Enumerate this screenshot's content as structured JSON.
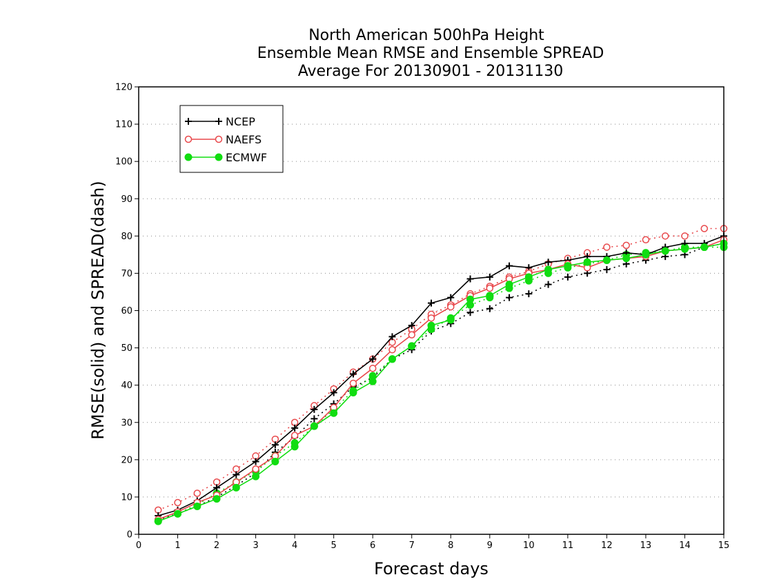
{
  "chart_data": {
    "type": "line",
    "title": [
      "North American 500hPa Height",
      "Ensemble Mean RMSE and Ensemble SPREAD",
      "Average For 20130901 - 20131130"
    ],
    "xlabel": "Forecast days",
    "ylabel": "RMSE(solid) and SPREAD(dash)",
    "xlim": [
      0,
      15
    ],
    "ylim": [
      0,
      120
    ],
    "xticks": [
      0,
      1,
      2,
      3,
      4,
      5,
      6,
      7,
      8,
      9,
      10,
      11,
      12,
      13,
      14,
      15
    ],
    "yticks": [
      0,
      10,
      20,
      30,
      40,
      50,
      60,
      70,
      80,
      90,
      100,
      110,
      120
    ],
    "grid": "horizontal dotted",
    "legend_position": "top-left",
    "x": [
      0.5,
      1,
      1.5,
      2,
      2.5,
      3,
      3.5,
      4,
      4.5,
      5,
      5.5,
      6,
      6.5,
      7,
      7.5,
      8,
      8.5,
      9,
      9.5,
      10,
      10.5,
      11,
      11.5,
      12,
      12.5,
      13,
      13.5,
      14,
      14.5,
      15
    ],
    "series": [
      {
        "name": "NCEP",
        "metric": "RMSE",
        "line": "solid",
        "color": "#000000",
        "marker": "plus",
        "values": [
          5,
          6.5,
          9,
          12.5,
          16,
          19.5,
          24,
          28.5,
          33.5,
          38,
          43,
          47,
          53,
          56,
          62,
          63.5,
          68.5,
          69,
          72,
          71.5,
          73,
          73.5,
          74.5,
          74.5,
          75.5,
          75,
          77,
          78,
          78,
          80
        ]
      },
      {
        "name": "NAEFS",
        "metric": "RMSE",
        "line": "solid",
        "color": "#e8474a",
        "marker": "open-circle",
        "values": [
          4,
          6,
          8.5,
          10.5,
          14,
          17.5,
          21,
          26.5,
          29,
          34,
          40.5,
          44.5,
          49.5,
          53.5,
          58,
          61,
          64,
          66,
          68.5,
          70,
          71,
          72.5,
          71.5,
          73.5,
          74,
          74.5,
          76,
          76.5,
          77,
          79
        ]
      },
      {
        "name": "ECMWF",
        "metric": "RMSE",
        "line": "solid",
        "color": "#11dd11",
        "marker": "filled-circle",
        "values": [
          3.5,
          5.5,
          7.5,
          9.5,
          12.5,
          15.5,
          19.5,
          23.5,
          29,
          32.5,
          38,
          41,
          47,
          50.5,
          56,
          57.5,
          63,
          64,
          67,
          69,
          71,
          72,
          73,
          73.5,
          74,
          75,
          76,
          76.5,
          77,
          78
        ]
      },
      {
        "name": "NCEP",
        "metric": "SPREAD",
        "line": "dash",
        "color": "#000000",
        "marker": "plus",
        "values": [
          4,
          5.5,
          7.5,
          10,
          13,
          16.5,
          22,
          26,
          31,
          35,
          39.5,
          42,
          47,
          49.5,
          54.5,
          56.5,
          59.5,
          60.5,
          63.5,
          64.5,
          67,
          69,
          70,
          71,
          72.5,
          73.5,
          74.5,
          75,
          77,
          78
        ]
      },
      {
        "name": "NAEFS",
        "metric": "SPREAD",
        "line": "dash",
        "color": "#e8474a",
        "marker": "open-circle",
        "values": [
          6.5,
          8.5,
          11,
          14,
          17.5,
          21,
          25.5,
          30,
          34.5,
          39,
          43.5,
          47,
          51.5,
          55,
          59,
          61.5,
          64.5,
          66.5,
          69,
          70.5,
          72.5,
          74,
          75.5,
          77,
          77.5,
          79,
          80,
          80,
          82,
          82
        ]
      },
      {
        "name": "ECMWF",
        "metric": "SPREAD",
        "line": "dash",
        "color": "#11dd11",
        "marker": "filled-circle",
        "values": [
          3.5,
          5.5,
          8,
          11,
          14,
          17,
          21,
          24.5,
          29,
          33.5,
          38.5,
          42.5,
          47,
          50.5,
          55,
          58,
          61.5,
          63.5,
          66,
          68,
          70,
          71.5,
          72.5,
          73.5,
          75,
          75.5,
          76,
          77,
          77,
          77
        ]
      }
    ]
  }
}
